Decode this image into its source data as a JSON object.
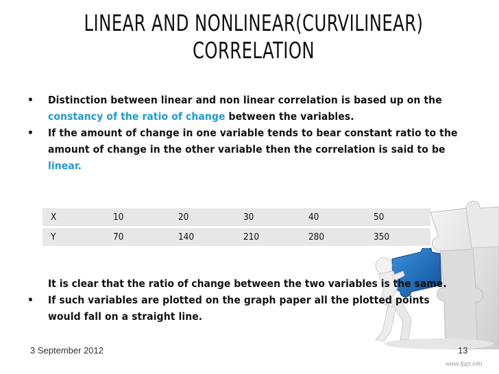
{
  "title": {
    "line1": "LINEAR AND NONLINEAR(CURVILINEAR)",
    "line2": "CORRELATION"
  },
  "bullets": [
    {
      "pre": "Distinction between linear and non linear correlation is based up on the",
      "highlight": "constancy of the ratio of change",
      "post": "between the variables."
    },
    {
      "line1": "If the amount of change in one variable tends to bear constant ratio to the",
      "line2": "amount of change in the other variable then the correlation is said to be",
      "highlight": "linear."
    }
  ],
  "table": {
    "rows": [
      [
        "X",
        "10",
        "20",
        "30",
        "40",
        "50"
      ],
      [
        "Y",
        "70",
        "140",
        "210",
        "280",
        "350"
      ]
    ]
  },
  "after_table": "It is clear that the ratio of change between the two variables is the same.",
  "bullet3": {
    "line1": "If such variables are plotted on the graph paper all the plotted points",
    "line2": "would fall on a straight line."
  },
  "footer": {
    "date": "3 September 2012",
    "page": "13",
    "watermark": "www.fppt.info"
  },
  "colors": {
    "highlight": "#1f9bd6",
    "table_bg": "#e7e7e7",
    "figure_blue": "#1f6fb5"
  },
  "icons": {
    "decoration": "puzzle-figure-illustration"
  }
}
